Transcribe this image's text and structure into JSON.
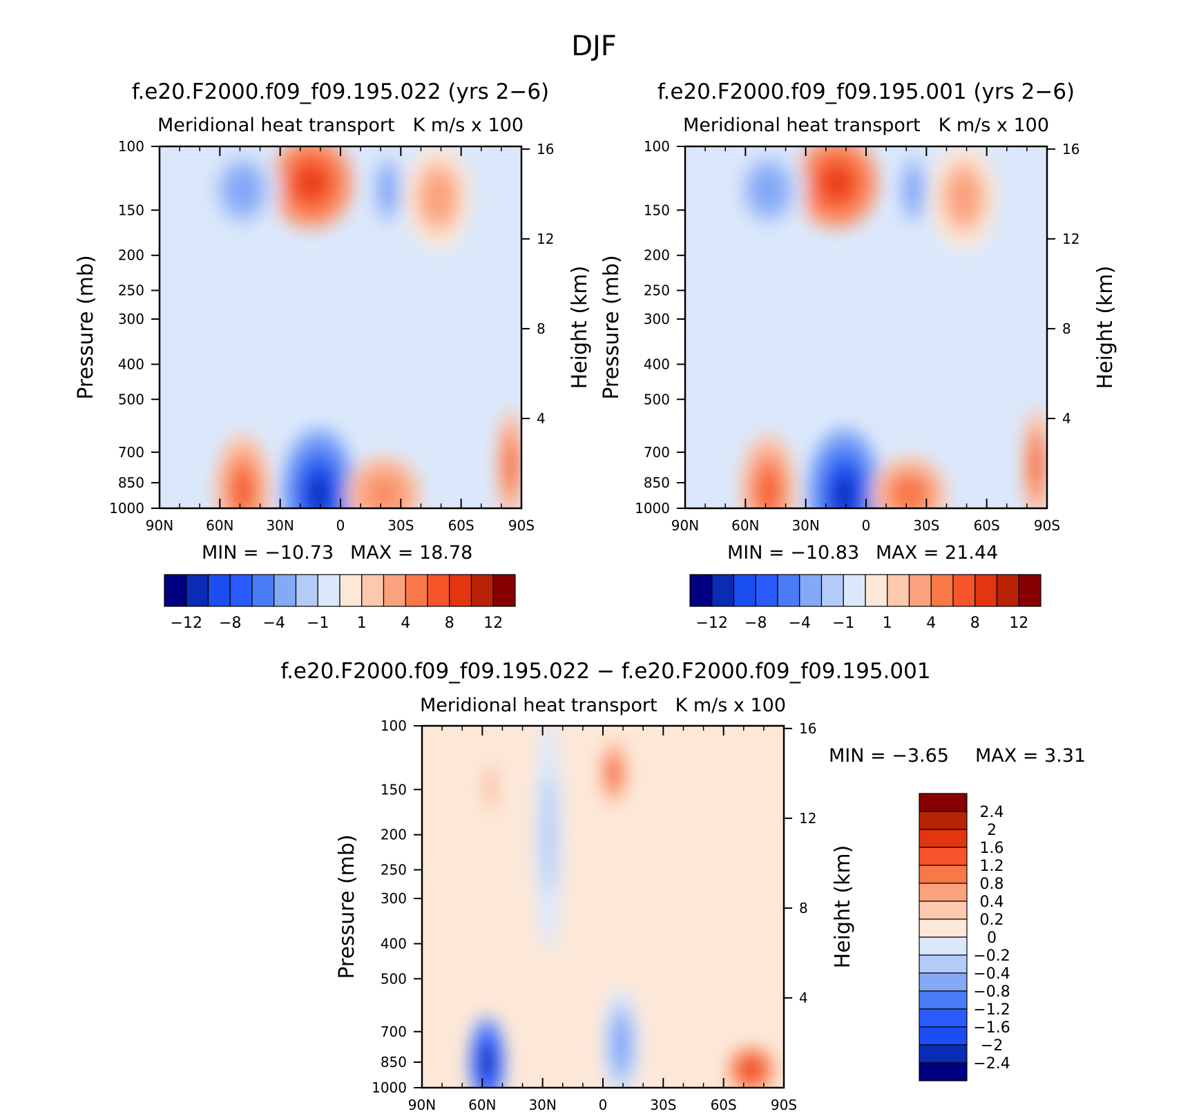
{
  "figure_title": "DJF",
  "colors": {
    "cb_main": [
      "#000080",
      "#0a2bb4",
      "#1a4ef0",
      "#2a5bff",
      "#4a7cf6",
      "#84a9f7",
      "#b4cbf8",
      "#dbe8fb",
      "#fde8d8",
      "#fcc8ae",
      "#faa27e",
      "#f87848",
      "#f7542a",
      "#e23510",
      "#b82207",
      "#860000"
    ],
    "cb_diff": [
      "#000080",
      "#0a2bb4",
      "#1a4ef0",
      "#2a5bff",
      "#4a7cf6",
      "#84a9f7",
      "#b4cbf8",
      "#dbe8fb",
      "#fde8d8",
      "#fcc8ae",
      "#faa27e",
      "#f87848",
      "#f7542a",
      "#e23510",
      "#b82207",
      "#860000"
    ]
  },
  "chart_data": [
    {
      "type": "heatmap",
      "title": "f.e20.F2000.f09_f09.195.022 (yrs 2−6)",
      "subtitle_left": "Meridional heat transport",
      "subtitle_right": "K m/s x 100",
      "ylabel": "Pressure (mb)",
      "ylabel_right": "Height (km)",
      "x_ticklabels": [
        "90N",
        "60N",
        "30N",
        "0",
        "30S",
        "60S",
        "90S"
      ],
      "y_ticklabels": [
        "100",
        "150",
        "200",
        "250",
        "300",
        "400",
        "500",
        "700",
        "850",
        "1000"
      ],
      "y2_ticklabels": [
        "16",
        "12",
        "8",
        "4"
      ],
      "ylim": [
        1000,
        100
      ],
      "min_label": "MIN = −10.73",
      "max_label": "MAX = 18.78",
      "colorbar_labels": [
        "−12",
        "−8",
        "−4",
        "−1",
        "1",
        "4",
        "8",
        "12"
      ],
      "features": [
        {
          "lat": 0.42,
          "p": 0.1,
          "value": 9,
          "w": 0.09,
          "h": 0.1
        },
        {
          "lat": 0.23,
          "p": 0.12,
          "value": -3,
          "w": 0.08,
          "h": 0.1
        },
        {
          "lat": 0.63,
          "p": 0.12,
          "value": -3,
          "w": 0.04,
          "h": 0.1
        },
        {
          "lat": 0.77,
          "p": 0.14,
          "value": 3,
          "w": 0.07,
          "h": 0.11
        },
        {
          "lat": 0.44,
          "p": 0.96,
          "value": -10.7,
          "w": 0.08,
          "h": 0.14
        },
        {
          "lat": 0.23,
          "p": 0.95,
          "value": 8,
          "w": 0.06,
          "h": 0.12
        },
        {
          "lat": 0.62,
          "p": 0.96,
          "value": 5,
          "w": 0.08,
          "h": 0.08
        },
        {
          "lat": 0.97,
          "p": 0.88,
          "value": 7,
          "w": 0.03,
          "h": 0.12
        }
      ]
    },
    {
      "type": "heatmap",
      "title": "f.e20.F2000.f09_f09.195.001 (yrs 2−6)",
      "subtitle_left": "Meridional heat transport",
      "subtitle_right": "K m/s x 100",
      "ylabel": "Pressure (mb)",
      "ylabel_right": "Height (km)",
      "x_ticklabels": [
        "90N",
        "60N",
        "30N",
        "0",
        "30S",
        "60S",
        "90S"
      ],
      "y_ticklabels": [
        "100",
        "150",
        "200",
        "250",
        "300",
        "400",
        "500",
        "700",
        "850",
        "1000"
      ],
      "y2_ticklabels": [
        "16",
        "12",
        "8",
        "4"
      ],
      "ylim": [
        1000,
        100
      ],
      "min_label": "MIN = −10.83",
      "max_label": "MAX = 21.44",
      "colorbar_labels": [
        "−12",
        "−8",
        "−4",
        "−1",
        "1",
        "4",
        "8",
        "12"
      ],
      "features": [
        {
          "lat": 0.42,
          "p": 0.1,
          "value": 10,
          "w": 0.09,
          "h": 0.1
        },
        {
          "lat": 0.23,
          "p": 0.12,
          "value": -3,
          "w": 0.08,
          "h": 0.1
        },
        {
          "lat": 0.63,
          "p": 0.12,
          "value": -3,
          "w": 0.04,
          "h": 0.1
        },
        {
          "lat": 0.77,
          "p": 0.14,
          "value": 3,
          "w": 0.07,
          "h": 0.11
        },
        {
          "lat": 0.44,
          "p": 0.96,
          "value": -10.8,
          "w": 0.08,
          "h": 0.14
        },
        {
          "lat": 0.23,
          "p": 0.95,
          "value": 8,
          "w": 0.06,
          "h": 0.12
        },
        {
          "lat": 0.62,
          "p": 0.96,
          "value": 6,
          "w": 0.08,
          "h": 0.08
        },
        {
          "lat": 0.97,
          "p": 0.88,
          "value": 8,
          "w": 0.03,
          "h": 0.12
        }
      ]
    },
    {
      "type": "heatmap",
      "title": "f.e20.F2000.f09_f09.195.022 − f.e20.F2000.f09_f09.195.001",
      "subtitle_left": "Meridional heat transport",
      "subtitle_right": "K m/s x 100",
      "ylabel": "Pressure (mb)",
      "ylabel_right": "Height (km)",
      "x_ticklabels": [
        "90N",
        "60N",
        "30N",
        "0",
        "30S",
        "60S",
        "90S"
      ],
      "y_ticklabels": [
        "100",
        "150",
        "200",
        "250",
        "300",
        "400",
        "500",
        "700",
        "850",
        "1000"
      ],
      "y2_ticklabels": [
        "16",
        "12",
        "8",
        "4"
      ],
      "ylim": [
        1000,
        100
      ],
      "min_label": "MIN = −3.65",
      "max_label": "MAX = 3.31",
      "colorbar_labels": [
        "2.4",
        "2",
        "1.6",
        "1.2",
        "0.8",
        "0.4",
        "0.2",
        "0",
        "−0.2",
        "−0.4",
        "−0.8",
        "−1.2",
        "−1.6",
        "−2",
        "−2.4"
      ],
      "features": [
        {
          "lat": 0.18,
          "p": 0.93,
          "value": -2.5,
          "w": 0.04,
          "h": 0.1
        },
        {
          "lat": 0.53,
          "p": 0.13,
          "value": 1.5,
          "w": 0.03,
          "h": 0.07
        },
        {
          "lat": 0.19,
          "p": 0.17,
          "value": 0.5,
          "w": 0.02,
          "h": 0.07
        },
        {
          "lat": 0.55,
          "p": 0.88,
          "value": -0.7,
          "w": 0.04,
          "h": 0.12
        },
        {
          "lat": 0.91,
          "p": 0.95,
          "value": 2,
          "w": 0.05,
          "h": 0.05
        },
        {
          "lat": 0.35,
          "p": 0.3,
          "value": -0.3,
          "w": 0.03,
          "h": 0.25
        }
      ]
    }
  ]
}
